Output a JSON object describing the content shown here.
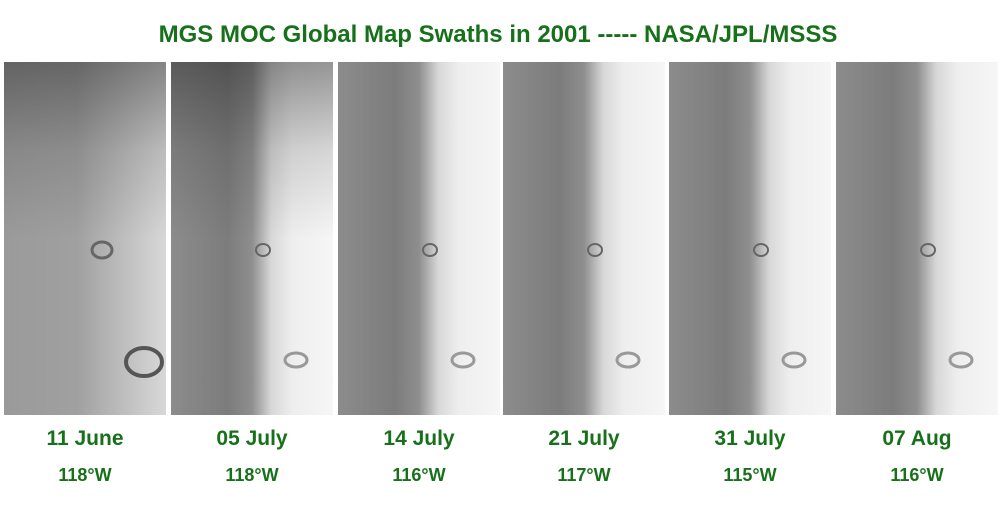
{
  "title": "MGS MOC Global Map Swaths in 2001 -----  NASA/JPL/MSSS",
  "panels": [
    {
      "date": "11 June",
      "longitude": "118°W"
    },
    {
      "date": "05 July",
      "longitude": "118°W"
    },
    {
      "date": "14 July",
      "longitude": "116°W"
    },
    {
      "date": "21 July",
      "longitude": "117°W"
    },
    {
      "date": "31 July",
      "longitude": "115°W"
    },
    {
      "date": "07 Aug",
      "longitude": "116°W"
    }
  ]
}
